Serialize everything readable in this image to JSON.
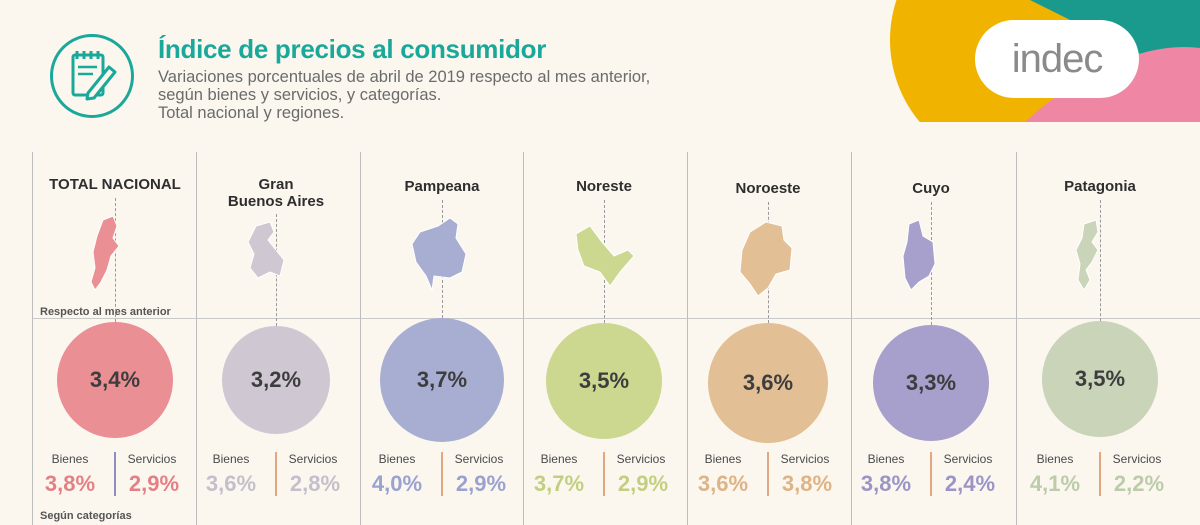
{
  "header": {
    "title": "Índice de precios al consumidor",
    "subtitle_line1": "Variaciones porcentuales de abril de 2019 respecto al mes anterior,",
    "subtitle_line2": "según bienes y servicios, y categorías.",
    "subtitle_line3": "Total nacional y regiones.",
    "icon": "notepad-pencil-icon"
  },
  "logo": {
    "text": "indec",
    "colors": [
      "#f0b400",
      "#1a9a8c",
      "#ee86a4"
    ]
  },
  "notes": {
    "respecto": "Respecto al mes anterior",
    "categorias": "Según categorías"
  },
  "labels": {
    "bienes": "Bienes",
    "servicios": "Servicios"
  },
  "regions": [
    {
      "name_line1": "TOTAL NACIONAL",
      "name_line2": "",
      "value": "3,4%",
      "bienes": "3,8%",
      "servicios": "2,9%",
      "color": "#ea8f94",
      "bienes_color": "#e57f86",
      "servicios_color": "#e57f86",
      "divider_color": "#8e8ec2"
    },
    {
      "name_line1": "Gran",
      "name_line2": "Buenos Aires",
      "value": "3,2%",
      "bienes": "3,6%",
      "servicios": "2,8%",
      "color": "#cfc8d3",
      "bienes_color": "#c5bfcb",
      "servicios_color": "#c5bfcb",
      "divider_color": "#e0a882"
    },
    {
      "name_line1": "Pampeana",
      "name_line2": "",
      "value": "3,7%",
      "bienes": "4,0%",
      "servicios": "2,9%",
      "color": "#a8aed2",
      "bienes_color": "#9aa2cf",
      "servicios_color": "#9aa2cf",
      "divider_color": "#e0a882"
    },
    {
      "name_line1": "Noreste",
      "name_line2": "",
      "value": "3,5%",
      "bienes": "3,7%",
      "servicios": "2,9%",
      "color": "#ccd78f",
      "bienes_color": "#c3cf80",
      "servicios_color": "#c3cf80",
      "divider_color": "#e0a882"
    },
    {
      "name_line1": "Noroeste",
      "name_line2": "",
      "value": "3,6%",
      "bienes": "3,6%",
      "servicios": "3,8%",
      "color": "#e3bf96",
      "bienes_color": "#deb385",
      "servicios_color": "#deb385",
      "divider_color": "#e0a882"
    },
    {
      "name_line1": "Cuyo",
      "name_line2": "",
      "value": "3,3%",
      "bienes": "3,8%",
      "servicios": "2,4%",
      "color": "#a79fcc",
      "bienes_color": "#9b94c7",
      "servicios_color": "#9b94c7",
      "divider_color": "#e0a882"
    },
    {
      "name_line1": "Patagonia",
      "name_line2": "",
      "value": "3,5%",
      "bienes": "4,1%",
      "servicios": "2,2%",
      "color": "#c9d4b8",
      "bienes_color": "#bdcbaa",
      "servicios_color": "#bdcbaa",
      "divider_color": "#e0a882"
    }
  ]
}
